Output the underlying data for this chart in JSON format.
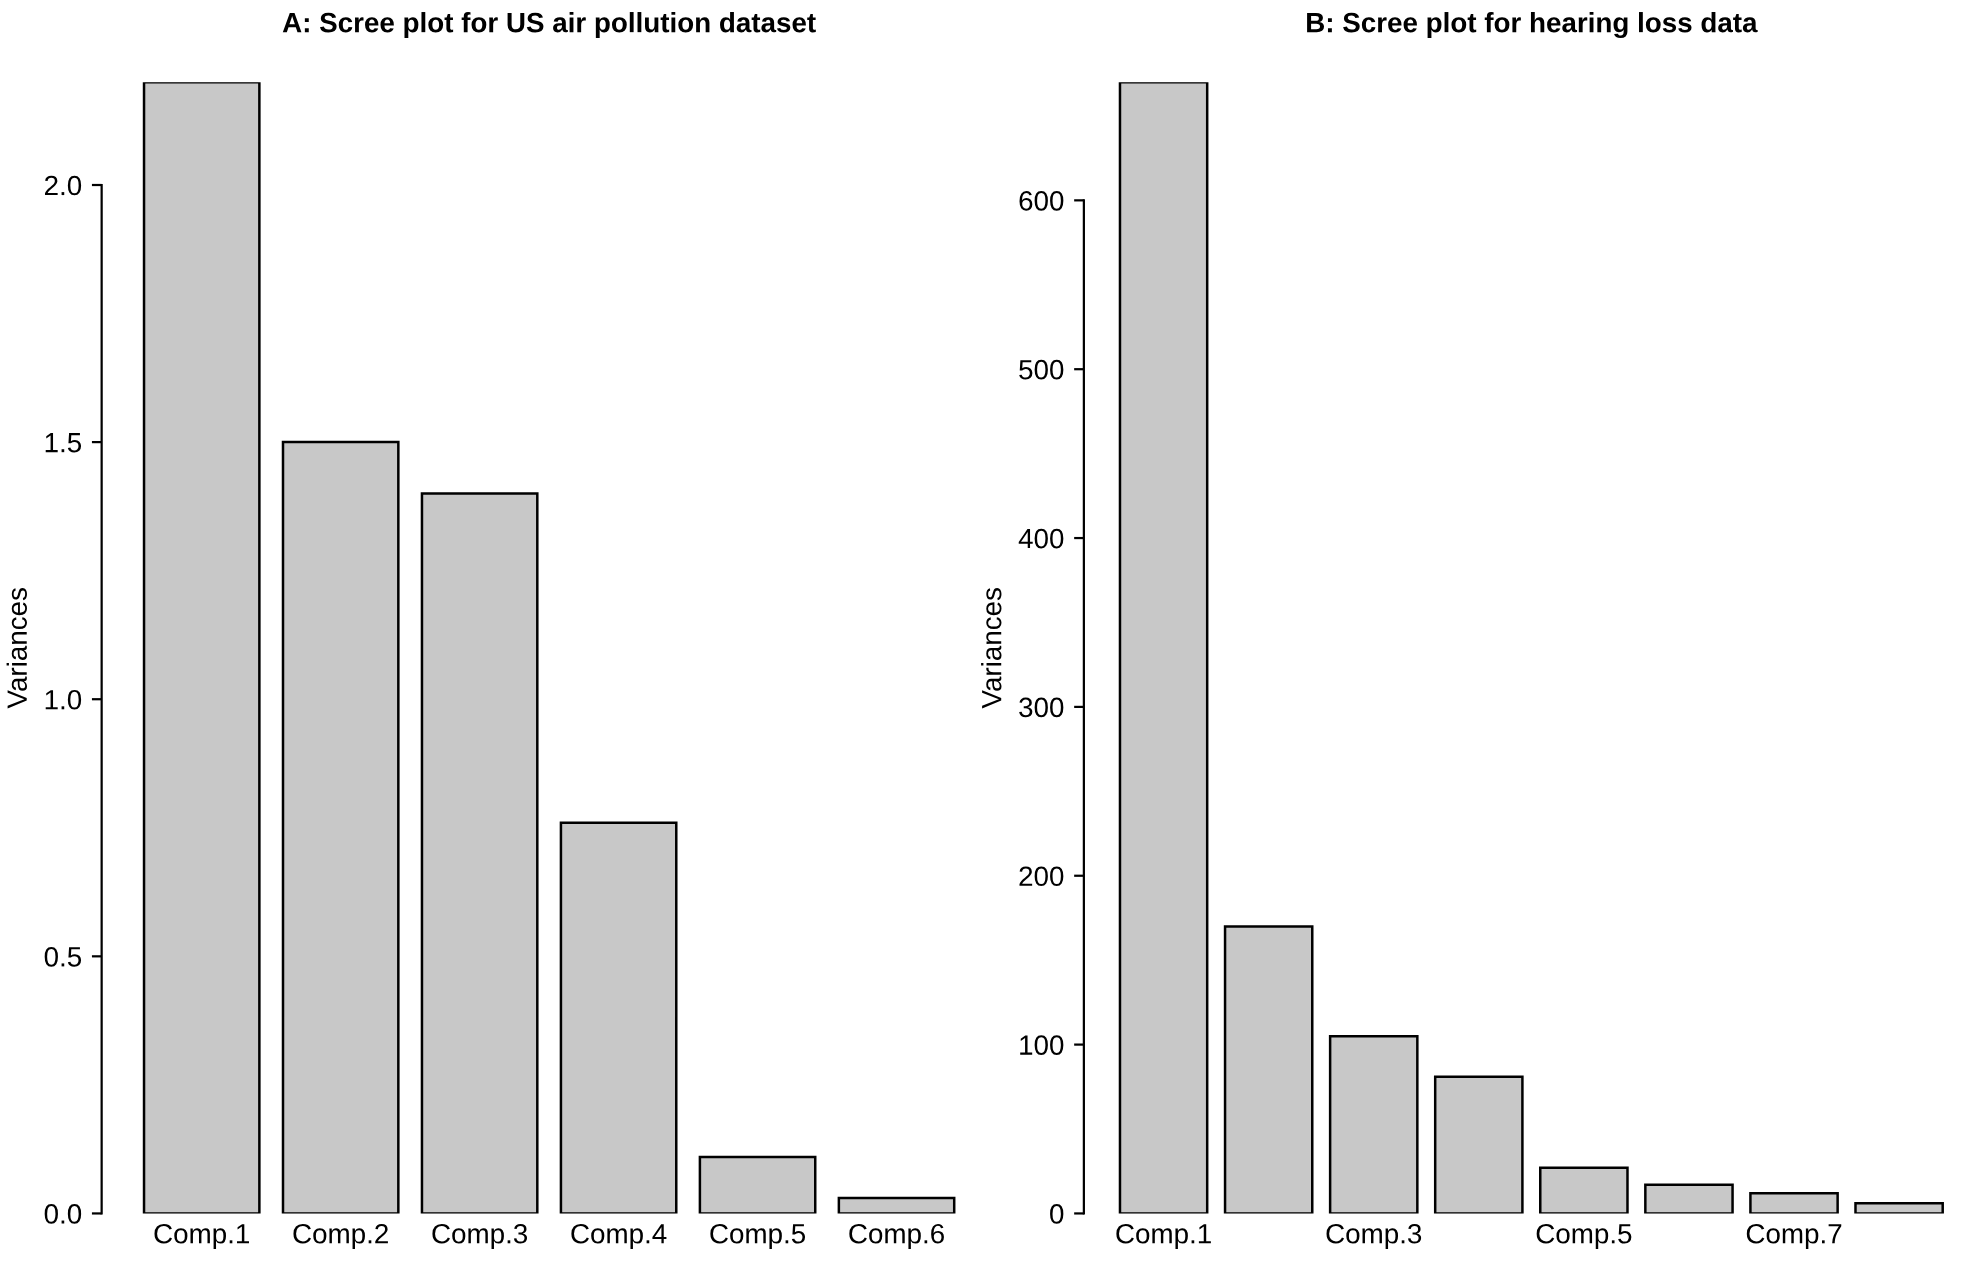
{
  "chart_data": [
    {
      "type": "bar",
      "title": "A: Scree plot for US air pollution dataset",
      "ylabel": "Variances",
      "categories": [
        "Comp.1",
        "Comp.2",
        "Comp.3",
        "Comp.4",
        "Comp.5",
        "Comp.6"
      ],
      "values": [
        2.2,
        1.5,
        1.4,
        0.76,
        0.11,
        0.03
      ],
      "color": "#c8c8c8",
      "ylim": [
        0,
        2.2
      ],
      "yticks": [
        {
          "value": 0,
          "label": "0.0"
        },
        0.5,
        {
          "value": 1,
          "label": "1.0"
        },
        1.5,
        {
          "value": 2,
          "label": "2.0"
        }
      ],
      "grid": false,
      "legend": false
    },
    {
      "type": "bar",
      "title": "B: Scree plot for hearing loss data",
      "ylabel": "Variances",
      "categories": [
        "Comp.1",
        null,
        "Comp.3",
        null,
        "Comp.5",
        null,
        "Comp.7",
        null
      ],
      "values": [
        670,
        170,
        105,
        81,
        27,
        17,
        12,
        6
      ],
      "color": "#c8c8c8",
      "ylim": [
        0,
        670
      ],
      "yticks": [
        0,
        100,
        200,
        300,
        400,
        500,
        600
      ],
      "grid": false,
      "legend": false
    }
  ]
}
